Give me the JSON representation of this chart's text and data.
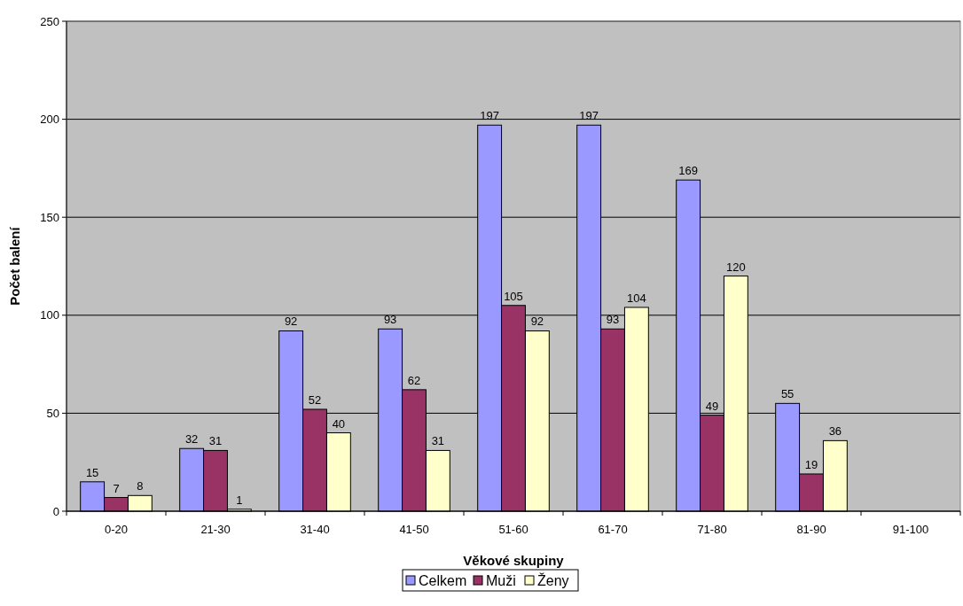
{
  "chart_data": {
    "type": "bar",
    "xlabel": "Věkové skupiny",
    "ylabel": "Počet balení",
    "categories": [
      "0-20",
      "21-30",
      "31-40",
      "41-50",
      "51-60",
      "61-70",
      "71-80",
      "81-90",
      "91-100"
    ],
    "series": [
      {
        "name": "Celkem",
        "color": "#9999ff",
        "values": [
          15,
          32,
          92,
          93,
          197,
          197,
          169,
          55,
          null
        ]
      },
      {
        "name": "Muži",
        "color": "#993366",
        "values": [
          7,
          31,
          52,
          62,
          105,
          93,
          49,
          19,
          null
        ]
      },
      {
        "name": "Ženy",
        "color": "#ffffcc",
        "values": [
          8,
          1,
          40,
          31,
          92,
          104,
          120,
          36,
          null
        ]
      }
    ],
    "ylim": [
      0,
      250
    ],
    "yticks": [
      0,
      50,
      100,
      150,
      200,
      250
    ],
    "grid": "y",
    "legend": "bottom",
    "data_labels": true
  }
}
